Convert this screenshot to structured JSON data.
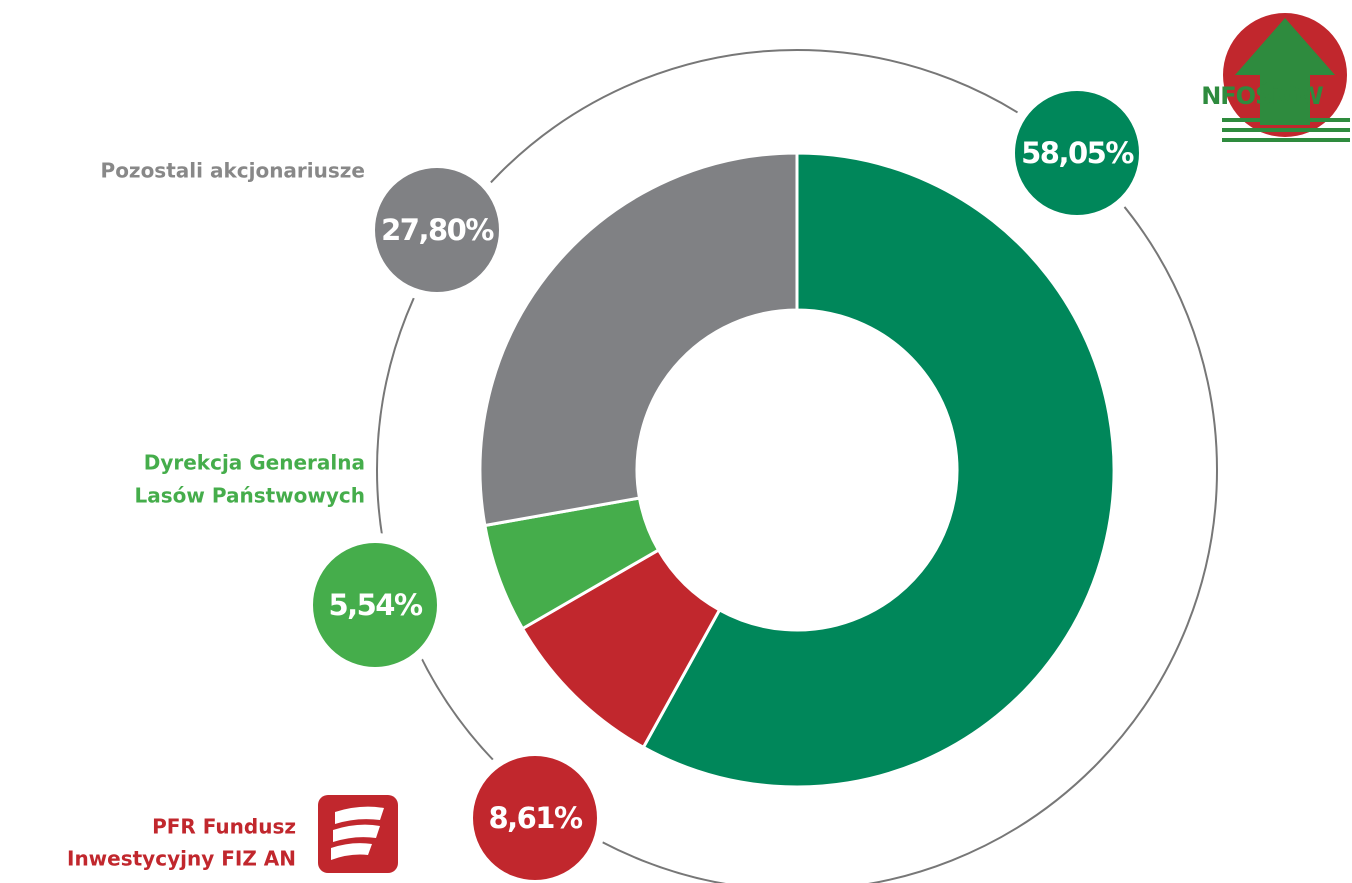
{
  "chart_data": {
    "type": "pie",
    "donut": true,
    "categories": [
      [
        "NFOŚiGW"
      ],
      [
        "PFR Fundusz",
        "Inwestycyjny FIZ AN"
      ],
      [
        "Dyrekcja Generalna",
        "Lasów Państwowych"
      ],
      [
        "Pozostali  akcjonariusze"
      ]
    ],
    "values": [
      58.05,
      8.61,
      5.54,
      27.8
    ],
    "value_labels": [
      "58,05%",
      "8,61%",
      "5,54%",
      "27,80%"
    ],
    "colors": [
      "#00875a",
      "#c1272d",
      "#45ad4b",
      "#808184"
    ]
  }
}
